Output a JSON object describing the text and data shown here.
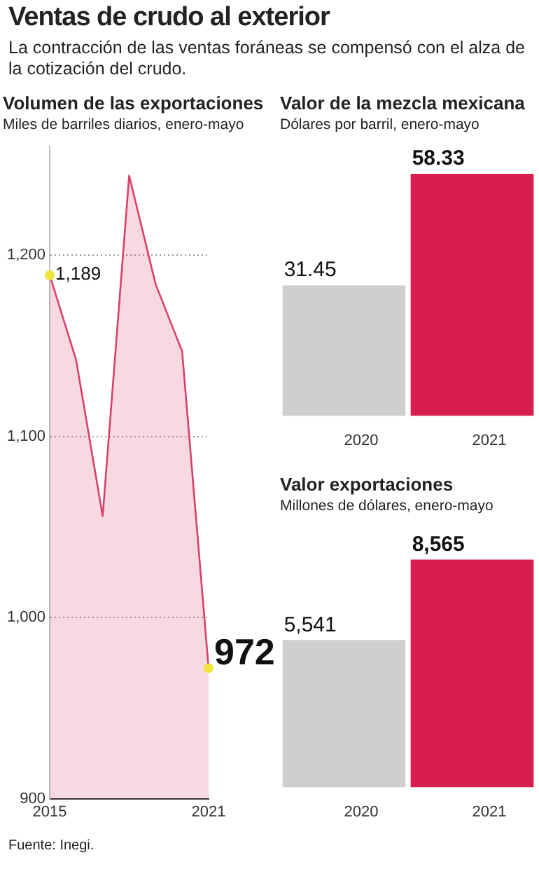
{
  "chart_data": [
    {
      "type": "area",
      "title": "Volumen de las exportaciones",
      "subtitle": "Miles de barriles diarios, enero-mayo",
      "categories": [
        "2015",
        null,
        null,
        null,
        null,
        null,
        "2021"
      ],
      "series": [
        {
          "color": "#d9416a",
          "values": [
            1189,
            1142,
            1056,
            1244,
            1184,
            1147,
            972
          ],
          "value_labels": [
            "1,189",
            null,
            null,
            null,
            null,
            null,
            "972"
          ]
        }
      ],
      "ylim": [
        900,
        1260
      ],
      "yticks": [
        {
          "value": 900,
          "label": "900"
        },
        {
          "value": 1000,
          "label": "1,000"
        },
        {
          "value": 1100,
          "label": "1,100"
        },
        {
          "value": 1200,
          "label": "1,200"
        }
      ],
      "grid": "y",
      "legend": false,
      "annotations": [
        "Ventas de crudo al exterior",
        "La contracción de las ventas foráneas se compensó con el alza de la cotización del crudo.",
        "Fuente: Inegi."
      ]
    },
    {
      "type": "bar",
      "title": "Valor de la mezcla mexicana",
      "subtitle": "Dólares por barril, enero-mayo",
      "categories": [
        "2020",
        "2021"
      ],
      "values": [
        31.45,
        58.33
      ],
      "colors": [
        "#cfcfcf",
        "#d81e4f"
      ],
      "data_labels": true,
      "legend": false
    },
    {
      "type": "bar",
      "title": "Valor exportaciones",
      "subtitle": "Millones de dólares, enero-mayo",
      "categories": [
        "2020",
        "2021"
      ],
      "values": [
        5541,
        8565
      ],
      "value_labels": [
        "5,541",
        "8,565"
      ],
      "colors": [
        "#cfcfcf",
        "#d81e4f"
      ],
      "legend": false
    }
  ]
}
